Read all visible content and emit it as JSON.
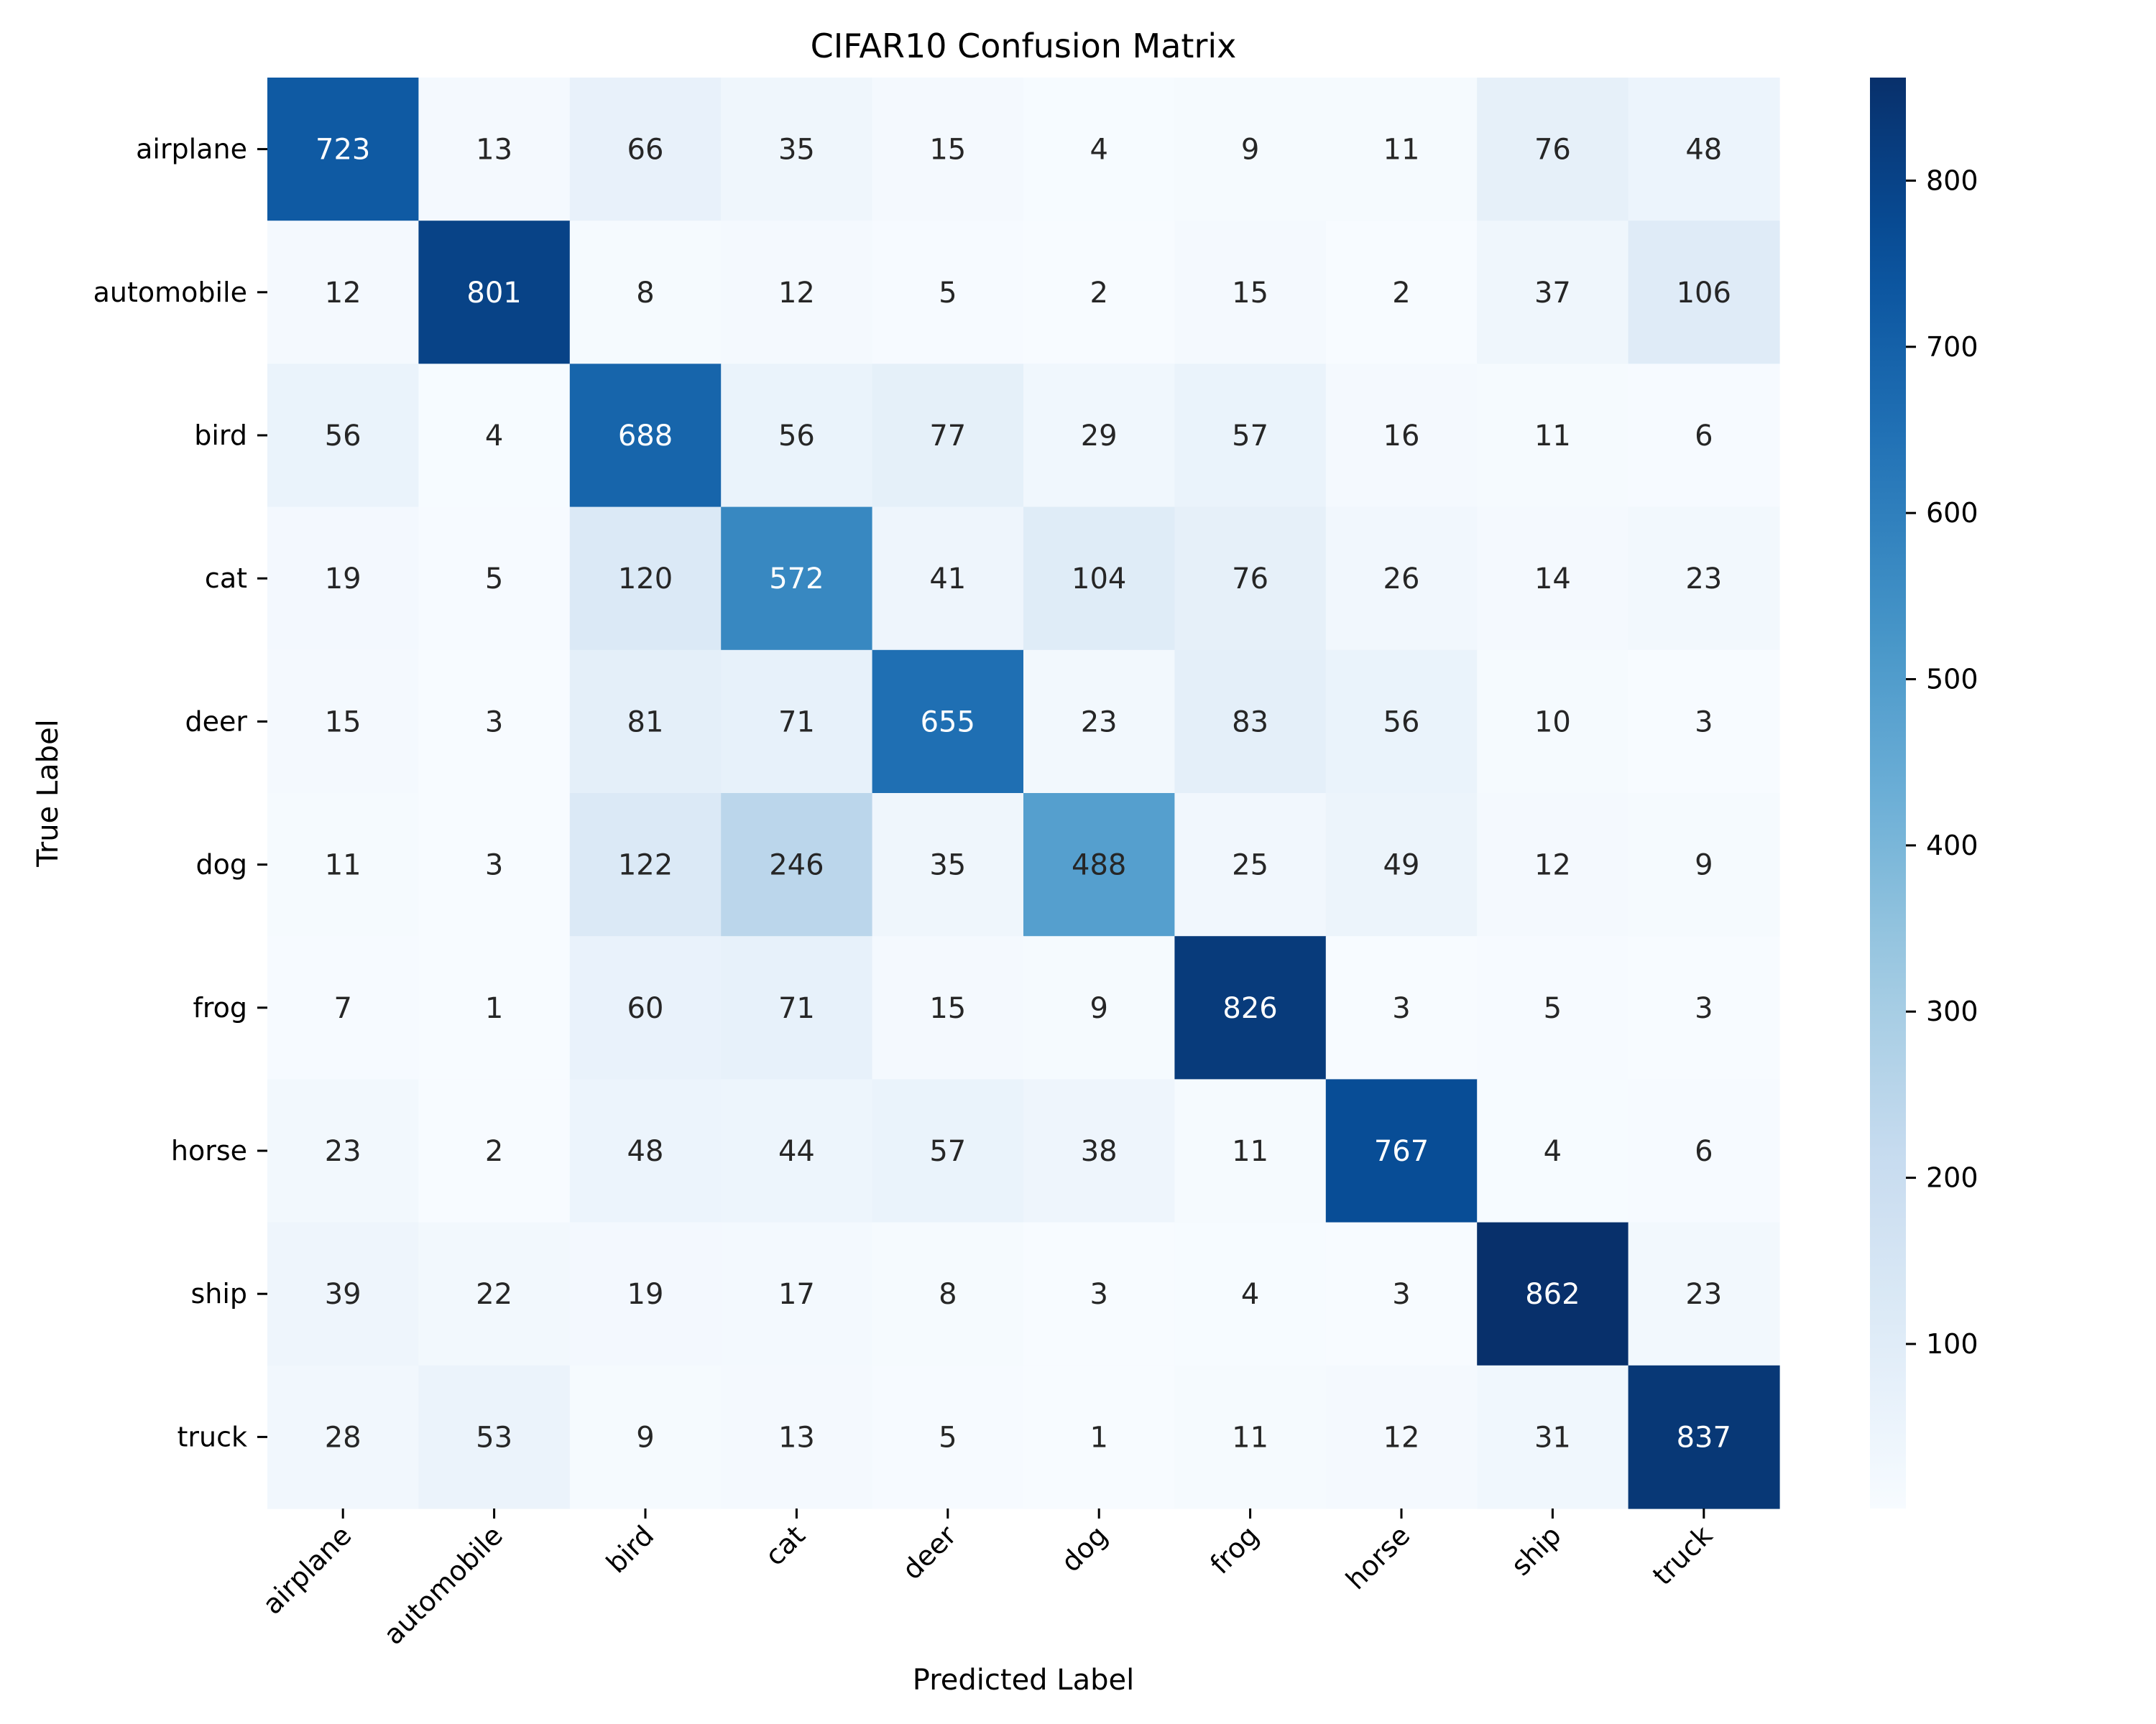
{
  "chart_data": {
    "type": "heatmap",
    "title": "CIFAR10 Confusion Matrix",
    "xlabel": "Predicted Label",
    "ylabel": "True Label",
    "x_categories": [
      "airplane",
      "automobile",
      "bird",
      "cat",
      "deer",
      "dog",
      "frog",
      "horse",
      "ship",
      "truck"
    ],
    "y_categories": [
      "airplane",
      "automobile",
      "bird",
      "cat",
      "deer",
      "dog",
      "frog",
      "horse",
      "ship",
      "truck"
    ],
    "values": [
      [
        723,
        13,
        66,
        35,
        15,
        4,
        9,
        11,
        76,
        48
      ],
      [
        12,
        801,
        8,
        12,
        5,
        2,
        15,
        2,
        37,
        106
      ],
      [
        56,
        4,
        688,
        56,
        77,
        29,
        57,
        16,
        11,
        6
      ],
      [
        19,
        5,
        120,
        572,
        41,
        104,
        76,
        26,
        14,
        23
      ],
      [
        15,
        3,
        81,
        71,
        655,
        23,
        83,
        56,
        10,
        3
      ],
      [
        11,
        3,
        122,
        246,
        35,
        488,
        25,
        49,
        12,
        9
      ],
      [
        7,
        1,
        60,
        71,
        15,
        9,
        826,
        3,
        5,
        3
      ],
      [
        23,
        2,
        48,
        44,
        57,
        38,
        11,
        767,
        4,
        6
      ],
      [
        39,
        22,
        19,
        17,
        8,
        3,
        4,
        3,
        862,
        23
      ],
      [
        28,
        53,
        9,
        13,
        5,
        1,
        11,
        12,
        31,
        837
      ]
    ],
    "colormap": "Blues",
    "colorbar": {
      "range": [
        1,
        862
      ],
      "ticks": [
        100,
        200,
        300,
        400,
        500,
        600,
        700,
        800
      ]
    },
    "x_tick_rotation_deg": 45,
    "grid": false
  }
}
